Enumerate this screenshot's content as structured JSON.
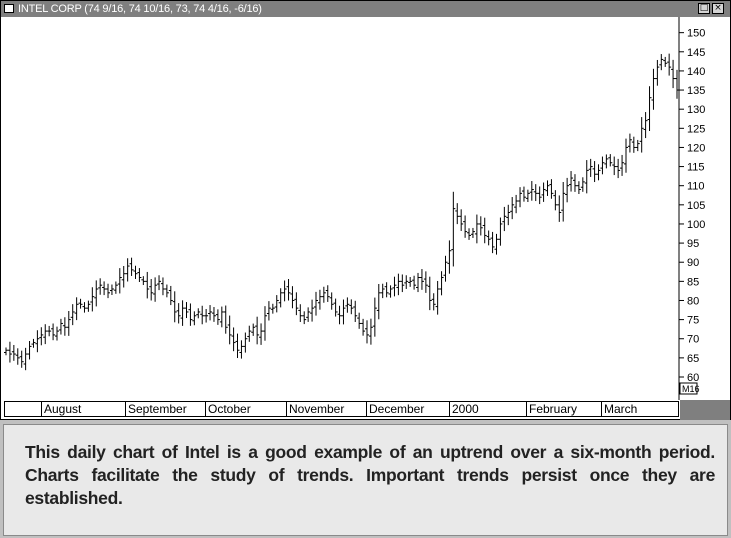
{
  "window": {
    "title": "INTEL CORP",
    "quote": "(74 9/16, 74 10/16, 73, 74 4/16, -6/16)",
    "restore_glyph": "□",
    "close_glyph": "×",
    "icon": "window-menu-icon"
  },
  "chart_data": {
    "type": "ohlc",
    "series": [
      {
        "name": "INTEL CORP"
      }
    ],
    "ylim": [
      55,
      155
    ],
    "y_ticks": [
      60,
      65,
      70,
      75,
      80,
      85,
      90,
      95,
      100,
      105,
      110,
      115,
      120,
      125,
      130,
      135,
      140,
      145,
      150
    ],
    "x_labels": [
      "August",
      "September",
      "October",
      "November",
      "December",
      "2000",
      "February",
      "March"
    ],
    "last_price_label": "M16",
    "closes": [
      67,
      66,
      66,
      65,
      64,
      66,
      68,
      69,
      70,
      71,
      72,
      72,
      71,
      72,
      74,
      73,
      75,
      77,
      79,
      79,
      78,
      79,
      81,
      83,
      84,
      83,
      82,
      83,
      84,
      86,
      87,
      89,
      88,
      87,
      86,
      85,
      83,
      82,
      84,
      85,
      83,
      82,
      80,
      77,
      76,
      78,
      77,
      75,
      76,
      77,
      76,
      76,
      77,
      76,
      75,
      77,
      73,
      71,
      69,
      67,
      68,
      70,
      72,
      73,
      71,
      72,
      76,
      78,
      78,
      80,
      82,
      83,
      82,
      80,
      78,
      76,
      75,
      77,
      78,
      80,
      81,
      82,
      81,
      79,
      77,
      76,
      78,
      79,
      78,
      76,
      74,
      72,
      71,
      73,
      78,
      82,
      83,
      82,
      83,
      84,
      85,
      84,
      85,
      85,
      84,
      86,
      85,
      84,
      80,
      79,
      83,
      86,
      90,
      93,
      104,
      102,
      100,
      98,
      97,
      98,
      100,
      99,
      97,
      96,
      94,
      96,
      100,
      102,
      103,
      105,
      106,
      108,
      107,
      108,
      109,
      108,
      107,
      109,
      110,
      108,
      105,
      103,
      108,
      110,
      112,
      110,
      109,
      111,
      114,
      115,
      113,
      114,
      116,
      117,
      116,
      115,
      114,
      116,
      120,
      122,
      120,
      121,
      125,
      127,
      133,
      138,
      141,
      143,
      142,
      141,
      138,
      135
    ]
  },
  "caption": {
    "text": "This daily chart of Intel is a good example of an uptrend over a six-month period. Charts facilitate the study of trends. Important trends persist once they are established."
  }
}
